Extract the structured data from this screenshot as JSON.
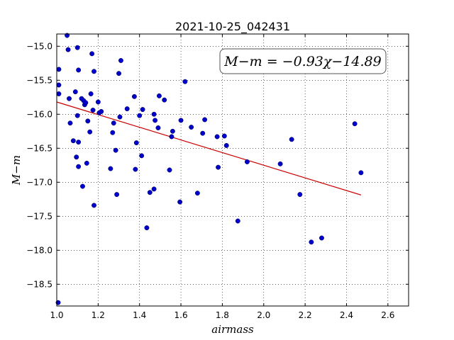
{
  "chart_data": {
    "type": "scatter",
    "title": "2021-10-25_042431",
    "xlabel": "airmass",
    "ylabel": "M−m",
    "xlim": [
      1.0,
      2.7
    ],
    "ylim": [
      -18.82,
      -14.82
    ],
    "x_ticks": [
      1.0,
      1.2,
      1.4,
      1.6,
      1.8,
      2.0,
      2.2,
      2.4,
      2.6
    ],
    "x_tick_labels": [
      "1.0",
      "1.2",
      "1.4",
      "1.6",
      "1.8",
      "2.0",
      "2.2",
      "2.4",
      "2.6"
    ],
    "y_ticks": [
      -15.0,
      -15.5,
      -16.0,
      -16.5,
      -17.0,
      -17.5,
      -18.0,
      -18.5
    ],
    "y_tick_labels": [
      "−15.0",
      "−15.5",
      "−16.0",
      "−16.5",
      "−17.0",
      "−17.5",
      "−18.0",
      "−18.5"
    ],
    "grid": true,
    "point_color": "#0000cc",
    "fit_color": "#cc0000",
    "annotation": "M−m = −0.93χ−14.89",
    "fit": {
      "slope": -0.93,
      "intercept": -14.89,
      "x_range": [
        1.0,
        2.47
      ]
    },
    "points": [
      [
        1.0,
        -18.77
      ],
      [
        1.01,
        -15.34
      ],
      [
        1.01,
        -15.57
      ],
      [
        1.01,
        -15.7
      ],
      [
        1.05,
        -14.84
      ],
      [
        1.055,
        -15.05
      ],
      [
        1.06,
        -15.77
      ],
      [
        1.065,
        -16.13
      ],
      [
        1.08,
        -16.39
      ],
      [
        1.09,
        -15.67
      ],
      [
        1.095,
        -16.63
      ],
      [
        1.1,
        -16.02
      ],
      [
        1.1,
        -15.02
      ],
      [
        1.105,
        -15.35
      ],
      [
        1.105,
        -16.77
      ],
      [
        1.105,
        -16.41
      ],
      [
        1.12,
        -15.77
      ],
      [
        1.125,
        -17.06
      ],
      [
        1.13,
        -15.8
      ],
      [
        1.135,
        -15.86
      ],
      [
        1.14,
        -15.83
      ],
      [
        1.145,
        -16.72
      ],
      [
        1.15,
        -16.1
      ],
      [
        1.16,
        -16.26
      ],
      [
        1.165,
        -15.7
      ],
      [
        1.17,
        -15.11
      ],
      [
        1.175,
        -15.94
      ],
      [
        1.18,
        -17.34
      ],
      [
        1.18,
        -15.37
      ],
      [
        1.2,
        -15.82
      ],
      [
        1.205,
        -15.98
      ],
      [
        1.215,
        -15.96
      ],
      [
        1.26,
        -16.8
      ],
      [
        1.27,
        -16.27
      ],
      [
        1.275,
        -16.13
      ],
      [
        1.285,
        -16.53
      ],
      [
        1.29,
        -17.18
      ],
      [
        1.3,
        -15.4
      ],
      [
        1.305,
        -16.04
      ],
      [
        1.31,
        -15.21
      ],
      [
        1.34,
        -15.92
      ],
      [
        1.375,
        -15.74
      ],
      [
        1.38,
        -16.81
      ],
      [
        1.385,
        -16.42
      ],
      [
        1.4,
        -16.02
      ],
      [
        1.41,
        -16.61
      ],
      [
        1.415,
        -15.93
      ],
      [
        1.435,
        -17.67
      ],
      [
        1.45,
        -17.15
      ],
      [
        1.47,
        -16.0
      ],
      [
        1.47,
        -17.1
      ],
      [
        1.475,
        -16.09
      ],
      [
        1.49,
        -16.2
      ],
      [
        1.495,
        -15.73
      ],
      [
        1.52,
        -15.79
      ],
      [
        1.545,
        -16.82
      ],
      [
        1.555,
        -16.33
      ],
      [
        1.56,
        -16.25
      ],
      [
        1.595,
        -17.29
      ],
      [
        1.6,
        -16.09
      ],
      [
        1.62,
        -15.52
      ],
      [
        1.65,
        -16.19
      ],
      [
        1.68,
        -17.16
      ],
      [
        1.705,
        -16.28
      ],
      [
        1.715,
        -16.08
      ],
      [
        1.775,
        -16.33
      ],
      [
        1.78,
        -16.78
      ],
      [
        1.81,
        -16.32
      ],
      [
        1.82,
        -16.46
      ],
      [
        1.875,
        -17.57
      ],
      [
        1.92,
        -16.7
      ],
      [
        2.08,
        -16.73
      ],
      [
        2.135,
        -16.37
      ],
      [
        2.175,
        -17.18
      ],
      [
        2.23,
        -17.88
      ],
      [
        2.28,
        -17.82
      ],
      [
        2.44,
        -16.14
      ],
      [
        2.47,
        -16.86
      ]
    ]
  }
}
